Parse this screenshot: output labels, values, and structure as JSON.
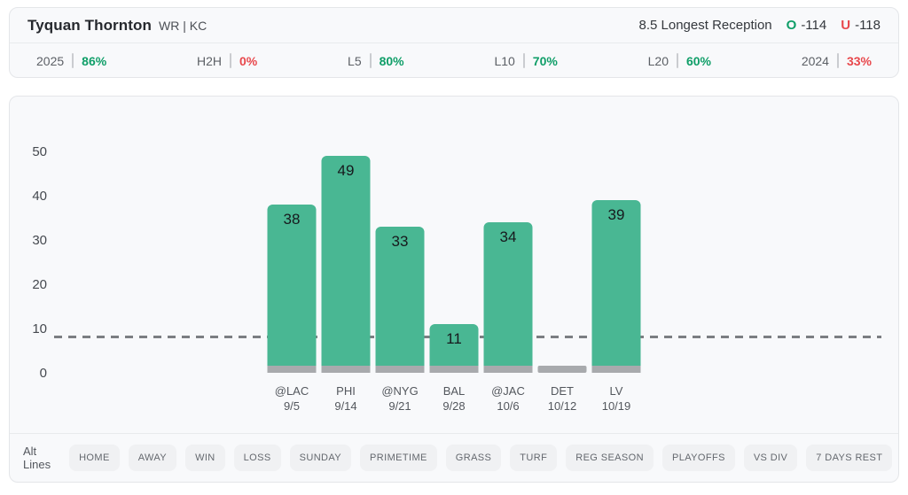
{
  "header": {
    "player_name": "Tyquan Thornton",
    "position_team": "WR | KC",
    "prop_line": "8.5 Longest Reception",
    "over": {
      "label": "O",
      "odds": "-114",
      "color": "#0f9e68"
    },
    "under": {
      "label": "U",
      "odds": "-118",
      "color": "#e8484c"
    }
  },
  "splits": [
    {
      "label": "2025",
      "value": "86%",
      "positive": true
    },
    {
      "label": "H2H",
      "value": "0%",
      "positive": false
    },
    {
      "label": "L5",
      "value": "80%",
      "positive": true
    },
    {
      "label": "L10",
      "value": "70%",
      "positive": true
    },
    {
      "label": "L20",
      "value": "60%",
      "positive": true
    },
    {
      "label": "2024",
      "value": "33%",
      "positive": false
    }
  ],
  "chart_data": {
    "type": "bar",
    "title": "",
    "xlabel": "",
    "ylabel": "",
    "categories": [
      "@LAC 9/5",
      "PHI 9/14",
      "@NYG 9/21",
      "BAL 9/28",
      "@JAC 10/6",
      "DET 10/12",
      "LV 10/19"
    ],
    "values": [
      38,
      49,
      33,
      11,
      34,
      0,
      39
    ],
    "games": [
      {
        "opponent": "@LAC",
        "date": "9/5",
        "value": 38
      },
      {
        "opponent": "PHI",
        "date": "9/14",
        "value": 49
      },
      {
        "opponent": "@NYG",
        "date": "9/21",
        "value": 33
      },
      {
        "opponent": "BAL",
        "date": "9/28",
        "value": 11
      },
      {
        "opponent": "@JAC",
        "date": "10/6",
        "value": 34
      },
      {
        "opponent": "DET",
        "date": "10/12",
        "value": 0
      },
      {
        "opponent": "LV",
        "date": "10/19",
        "value": 39
      }
    ],
    "prop_line_value": 8.5,
    "yticks": [
      0,
      10,
      20,
      30,
      40,
      50
    ],
    "ylim": [
      0,
      55
    ],
    "grid": false,
    "legend": "none",
    "bar_color": "#49b793",
    "bar_base_color": "#a8aaad",
    "line_color": "#7b7e82",
    "line_style": "dashed"
  },
  "filters": {
    "alt_lines_label": "Alt Lines",
    "up_icon": "chevron-up",
    "down_icon": "chevron-down",
    "buttons": [
      "HOME",
      "AWAY",
      "WIN",
      "LOSS",
      "SUNDAY",
      "PRIMETIME",
      "GRASS",
      "TURF",
      "REG SEASON",
      "PLAYOFFS",
      "VS DIV",
      "7 DAYS REST"
    ]
  }
}
